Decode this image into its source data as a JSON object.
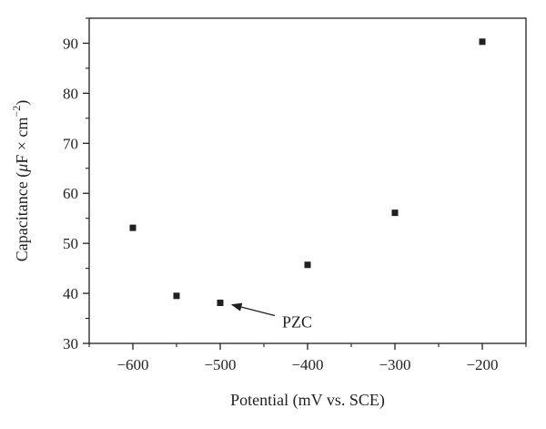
{
  "chart_data": {
    "type": "scatter",
    "xlabel": "Potential (mV vs. SCE)",
    "ylabel": {
      "prefix": "Capacitance (",
      "mu": "μ",
      "unit": "F × cm",
      "exponent": "−2",
      "suffix": ")"
    },
    "xlim": [
      -650,
      -150
    ],
    "ylim": [
      30,
      95
    ],
    "xticks_major": [
      -600,
      -500,
      -400,
      -300,
      -200
    ],
    "xtick_labels": [
      "−600",
      "−500",
      "−400",
      "−300",
      "−200"
    ],
    "xticks_minor": [
      -650,
      -550,
      -450,
      -350,
      -250,
      -150
    ],
    "yticks_major": [
      30,
      40,
      50,
      60,
      70,
      80,
      90
    ],
    "ytick_labels": [
      "30",
      "40",
      "50",
      "60",
      "70",
      "80",
      "90"
    ],
    "yticks_minor": [
      35,
      45,
      55,
      65,
      75,
      85,
      95
    ],
    "grid": false,
    "marker": "square",
    "marker_color": "#231f20",
    "points": [
      {
        "x": -600,
        "y": 53.1
      },
      {
        "x": -550,
        "y": 39.5
      },
      {
        "x": -500,
        "y": 38.1
      },
      {
        "x": -400,
        "y": 45.7
      },
      {
        "x": -300,
        "y": 56.1
      },
      {
        "x": -200,
        "y": 90.3
      }
    ],
    "annotations": [
      {
        "text": "PZC",
        "target": {
          "x": -500,
          "y": 38.1
        },
        "arrow": true
      }
    ]
  }
}
